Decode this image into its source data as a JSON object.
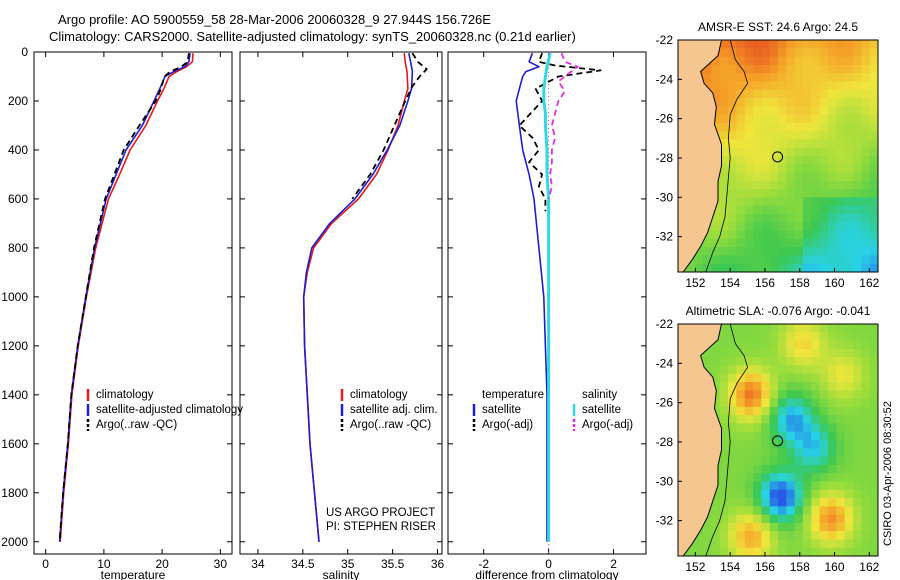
{
  "page": {
    "title_line1": "Argo profile: AO 5900559_58 28-Mar-2006 20060328_9 27.944S 156.726E",
    "title_line2": "Climatology: CARS2000. Satellite-adjusted climatology: synTS_20060328.nc (0.21d earlier)",
    "stamp": "CSIRO 03-Apr-2006 08:30:52"
  },
  "colors": {
    "climatology": "#e41a1c",
    "satellite": "#1f1fd0",
    "argo": "#000000",
    "sal_satellite": "#30d8e0",
    "sal_argo": "#e030e0",
    "land": "#f5c690"
  },
  "chart_data": [
    {
      "type": "line",
      "name": "temperature-profile",
      "xlabel": "temperature",
      "ylabel": "",
      "xlim": [
        -2,
        32
      ],
      "ylim": [
        2050,
        0
      ],
      "xticks": [
        0,
        10,
        20,
        30
      ],
      "yticks": [
        0,
        200,
        400,
        600,
        800,
        1000,
        1200,
        1400,
        1600,
        1800,
        2000
      ],
      "legend": [
        "climatology",
        "satellite-adjusted climatology",
        "Argo(..raw -QC)"
      ],
      "series": [
        {
          "name": "climatology",
          "color_key": "climatology",
          "dash": false,
          "points": [
            [
              25.3,
              5
            ],
            [
              25.2,
              40
            ],
            [
              24.2,
              60
            ],
            [
              22.5,
              80
            ],
            [
              21.2,
              100
            ],
            [
              20.3,
              150
            ],
            [
              19.2,
              200
            ],
            [
              17.2,
              300
            ],
            [
              14.5,
              400
            ],
            [
              12.7,
              500
            ],
            [
              10.8,
              600
            ],
            [
              8.6,
              800
            ],
            [
              7.0,
              1000
            ],
            [
              5.6,
              1200
            ],
            [
              4.5,
              1400
            ],
            [
              3.9,
              1600
            ],
            [
              3.1,
              1800
            ],
            [
              2.5,
              2000
            ]
          ]
        },
        {
          "name": "satellite-adjusted climatology",
          "color_key": "satellite",
          "dash": false,
          "points": [
            [
              24.8,
              5
            ],
            [
              24.6,
              40
            ],
            [
              23.9,
              60
            ],
            [
              22.0,
              80
            ],
            [
              20.5,
              100
            ],
            [
              19.6,
              150
            ],
            [
              18.6,
              200
            ],
            [
              16.6,
              300
            ],
            [
              13.8,
              400
            ],
            [
              12.1,
              500
            ],
            [
              10.4,
              600
            ],
            [
              8.4,
              800
            ],
            [
              6.9,
              1000
            ],
            [
              5.5,
              1200
            ],
            [
              4.4,
              1400
            ],
            [
              3.8,
              1600
            ],
            [
              3.0,
              1800
            ],
            [
              2.4,
              2000
            ]
          ]
        },
        {
          "name": "Argo(..raw -QC)",
          "color_key": "argo",
          "dash": true,
          "points": [
            [
              24.6,
              5
            ],
            [
              24.4,
              40
            ],
            [
              23.3,
              60
            ],
            [
              21.4,
              80
            ],
            [
              20.4,
              100
            ],
            [
              19.8,
              150
            ],
            [
              18.9,
              200
            ],
            [
              16.1,
              300
            ],
            [
              13.4,
              400
            ],
            [
              11.8,
              500
            ],
            [
              10.2,
              600
            ],
            [
              8.3,
              800
            ],
            [
              6.9,
              1000
            ],
            [
              5.5,
              1200
            ],
            [
              4.4,
              1400
            ],
            [
              3.8,
              1600
            ],
            [
              3.0,
              1800
            ],
            [
              2.4,
              2000
            ]
          ]
        }
      ]
    },
    {
      "type": "line",
      "name": "salinity-profile",
      "xlabel": "salinity",
      "ylabel": "",
      "xlim": [
        33.8,
        36.05
      ],
      "ylim": [
        2050,
        0
      ],
      "xticks": [
        34,
        34.5,
        35,
        35.5,
        36
      ],
      "yticks": [
        0,
        200,
        400,
        600,
        800,
        1000,
        1200,
        1400,
        1600,
        1800,
        2000
      ],
      "legend": [
        "climatology",
        "satellite adj. clim.",
        "Argo(..raw -QC)"
      ],
      "annotation": [
        "US ARGO PROJECT",
        "PI: STEPHEN RISER"
      ],
      "series": [
        {
          "name": "climatology",
          "color_key": "climatology",
          "dash": false,
          "points": [
            [
              35.63,
              5
            ],
            [
              35.64,
              40
            ],
            [
              35.66,
              80
            ],
            [
              35.67,
              150
            ],
            [
              35.63,
              200
            ],
            [
              35.56,
              300
            ],
            [
              35.45,
              400
            ],
            [
              35.32,
              500
            ],
            [
              35.12,
              600
            ],
            [
              34.82,
              700
            ],
            [
              34.62,
              800
            ],
            [
              34.55,
              900
            ],
            [
              34.51,
              1000
            ],
            [
              34.52,
              1200
            ],
            [
              34.55,
              1400
            ],
            [
              34.58,
              1600
            ],
            [
              34.63,
              1800
            ],
            [
              34.68,
              2000
            ]
          ]
        },
        {
          "name": "satellite adj. clim.",
          "color_key": "satellite",
          "dash": false,
          "points": [
            [
              35.68,
              5
            ],
            [
              35.7,
              40
            ],
            [
              35.72,
              80
            ],
            [
              35.71,
              150
            ],
            [
              35.67,
              200
            ],
            [
              35.58,
              300
            ],
            [
              35.44,
              400
            ],
            [
              35.28,
              500
            ],
            [
              35.08,
              600
            ],
            [
              34.8,
              700
            ],
            [
              34.6,
              800
            ],
            [
              34.54,
              900
            ],
            [
              34.51,
              1000
            ],
            [
              34.52,
              1200
            ],
            [
              34.55,
              1400
            ],
            [
              34.58,
              1600
            ],
            [
              34.63,
              1800
            ],
            [
              34.68,
              2000
            ]
          ]
        },
        {
          "name": "Argo(..raw -QC)",
          "color_key": "argo",
          "dash": true,
          "points": [
            [
              35.72,
              5
            ],
            [
              35.78,
              40
            ],
            [
              35.88,
              70
            ],
            [
              35.8,
              100
            ],
            [
              35.72,
              140
            ],
            [
              35.64,
              200
            ],
            [
              35.52,
              300
            ],
            [
              35.4,
              400
            ],
            [
              35.25,
              500
            ],
            [
              35.05,
              600
            ]
          ]
        }
      ]
    },
    {
      "type": "line",
      "name": "difference-from-climatology",
      "xlabel": "difference from climatology",
      "ylabel": "",
      "xlim": [
        -3.1,
        3.0
      ],
      "ylim": [
        2050,
        0
      ],
      "xticks": [
        -2,
        0,
        2
      ],
      "yticks": [
        0,
        200,
        400,
        600,
        800,
        1000,
        1200,
        1400,
        1600,
        1800,
        2000
      ],
      "legend_temperature_title": "temperature",
      "legend_salinity_title": "salinity",
      "legend": [
        "satellite",
        "Argo(-adj)",
        "satellite",
        "Argo(-adj)"
      ],
      "series": [
        {
          "name": "temperature satellite",
          "color_key": "satellite",
          "dash": false,
          "points": [
            [
              -0.5,
              5
            ],
            [
              -0.6,
              40
            ],
            [
              -0.3,
              60
            ],
            [
              -0.7,
              80
            ],
            [
              -0.8,
              100
            ],
            [
              -0.9,
              150
            ],
            [
              -1.0,
              200
            ],
            [
              -0.9,
              300
            ],
            [
              -0.8,
              400
            ],
            [
              -0.6,
              500
            ],
            [
              -0.45,
              600
            ],
            [
              -0.3,
              800
            ],
            [
              -0.15,
              1000
            ],
            [
              -0.1,
              1200
            ],
            [
              -0.05,
              1400
            ],
            [
              -0.05,
              1600
            ],
            [
              -0.05,
              1800
            ],
            [
              -0.05,
              2000
            ]
          ]
        },
        {
          "name": "temperature Argo(-adj)",
          "color_key": "argo",
          "dash": true,
          "points": [
            [
              -0.2,
              5
            ],
            [
              -0.3,
              40
            ],
            [
              0.2,
              55
            ],
            [
              1.6,
              75
            ],
            [
              0.3,
              100
            ],
            [
              -0.4,
              150
            ],
            [
              -0.2,
              200
            ],
            [
              -0.9,
              300
            ],
            [
              -0.5,
              350
            ],
            [
              -0.3,
              400
            ],
            [
              -0.6,
              450
            ],
            [
              -0.2,
              500
            ],
            [
              -0.3,
              550
            ],
            [
              -0.1,
              600
            ],
            [
              -0.1,
              650
            ]
          ]
        },
        {
          "name": "salinity satellite",
          "color_key": "sal_satellite",
          "dash": false,
          "points": [
            [
              0.05,
              5
            ],
            [
              -0.05,
              60
            ],
            [
              -0.1,
              100
            ],
            [
              -0.15,
              150
            ],
            [
              -0.15,
              200
            ],
            [
              -0.1,
              250
            ],
            [
              -0.1,
              300
            ],
            [
              -0.05,
              400
            ],
            [
              -0.05,
              500
            ],
            [
              0.0,
              600
            ],
            [
              0.0,
              800
            ],
            [
              0.0,
              1000
            ],
            [
              0.0,
              1200
            ],
            [
              0.0,
              1400
            ],
            [
              0.0,
              1600
            ],
            [
              0.0,
              1800
            ],
            [
              0.0,
              2000
            ]
          ]
        },
        {
          "name": "salinity Argo(-adj)",
          "color_key": "sal_argo",
          "dash": true,
          "points": [
            [
              0.4,
              5
            ],
            [
              0.5,
              40
            ],
            [
              0.9,
              60
            ],
            [
              0.6,
              90
            ],
            [
              0.3,
              120
            ],
            [
              0.5,
              160
            ],
            [
              0.3,
              200
            ],
            [
              0.2,
              250
            ],
            [
              0.1,
              300
            ],
            [
              0.2,
              350
            ],
            [
              0.1,
              400
            ],
            [
              0.1,
              450
            ],
            [
              0.05,
              500
            ],
            [
              0.1,
              550
            ],
            [
              0.0,
              600
            ]
          ]
        }
      ]
    },
    {
      "type": "heatmap",
      "name": "amsr-e-sst-map",
      "title": "AMSR-E SST: 24.6 Argo: 24.5",
      "xlim": [
        151,
        162.5
      ],
      "ylim": [
        -33.8,
        -22
      ],
      "xticks": [
        152,
        154,
        156,
        158,
        160,
        162
      ],
      "yticks": [
        -22,
        -24,
        -26,
        -28,
        -30,
        -32
      ],
      "float_location": [
        156.726,
        -27.944
      ]
    },
    {
      "type": "heatmap",
      "name": "altimetric-sla-map",
      "title": "Altimetric SLA: -0.076 Argo: -0.041",
      "xlim": [
        151,
        162.5
      ],
      "ylim": [
        -33.8,
        -22
      ],
      "xticks": [
        152,
        154,
        156,
        158,
        160,
        162
      ],
      "yticks": [
        -22,
        -24,
        -26,
        -28,
        -30,
        -32
      ],
      "float_location": [
        156.726,
        -27.944
      ]
    }
  ]
}
